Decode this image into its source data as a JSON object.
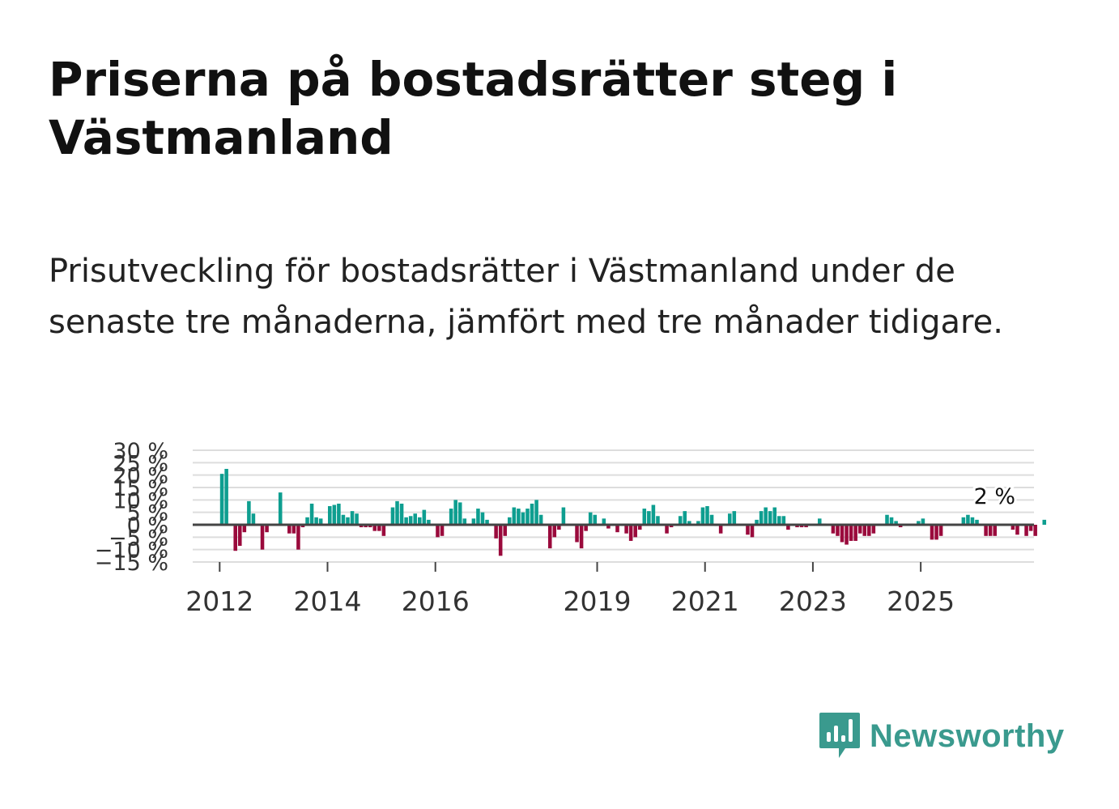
{
  "title": "Priserna på bostadsrätter steg i Västmanland",
  "subtitle": "Prisutveckling för bostadsrätter i Västmanland under de senaste tre månaderna, jämfört med tre månader tidigare.",
  "brand": {
    "name": "Newsworthy",
    "color": "#3a9a8e"
  },
  "colors": {
    "positive": "#0e9e90",
    "negative": "#9a0a3c",
    "zero_line": "#444444",
    "grid": "#dddddd"
  },
  "chart_data": {
    "type": "bar",
    "title": "",
    "xlabel": "",
    "ylabel": "",
    "ylim": [
      -15,
      30
    ],
    "y_ticks": [
      30,
      25,
      20,
      15,
      10,
      5,
      0,
      -5,
      -10,
      -15
    ],
    "y_tick_labels": [
      "30 %",
      "25 %",
      "20 %",
      "15 %",
      "10 %",
      "5 %",
      "0 %",
      "−5 %",
      "−10 %",
      "−15 %"
    ],
    "x_start": 2011.5,
    "x_end": 2027.1,
    "x_ticks": [
      2012,
      2014,
      2016,
      2019,
      2021,
      2023,
      2025
    ],
    "x_tick_labels": [
      "2012",
      "2014",
      "2016",
      "2019",
      "2021",
      "2023",
      "2025"
    ],
    "series_start": "2012-01",
    "last_value_label": "2 %",
    "values": [
      20.5,
      22.5,
      0,
      -10.5,
      -8.5,
      -3,
      9.5,
      4.5,
      0,
      -10,
      -3,
      0,
      0,
      13,
      0,
      -3.5,
      -3.5,
      -10,
      -1,
      3,
      8.5,
      3,
      2.5,
      0,
      7.5,
      8,
      8.5,
      4,
      3,
      5.5,
      4.5,
      -1,
      -1,
      -1,
      -2.5,
      -2.5,
      -4.5,
      0,
      7,
      9.5,
      8.5,
      3,
      3.5,
      4.5,
      3,
      6,
      2,
      0,
      -5,
      -4.5,
      0,
      6.5,
      10,
      9,
      2.5,
      0,
      2.5,
      6.5,
      5,
      2,
      0,
      -5.5,
      -12.5,
      -4.5,
      3,
      7,
      6.5,
      5,
      6.5,
      8.5,
      10,
      4,
      0,
      -9.5,
      -5,
      -2,
      7,
      0,
      0,
      -7,
      -9.5,
      -2.5,
      5,
      4,
      0,
      2.5,
      -1.5,
      0,
      -3,
      0,
      -3.5,
      -6.5,
      -5,
      -2,
      6.5,
      5.5,
      8,
      3.5,
      0,
      -3.5,
      -1,
      0,
      3.5,
      5.5,
      1.5,
      0,
      1.5,
      7,
      7.5,
      4,
      -0.5,
      -3.5,
      0,
      4.5,
      5.5,
      0,
      0,
      -4,
      -5,
      2,
      5.5,
      7,
      5.5,
      7,
      3.5,
      3.5,
      -2,
      0,
      -1,
      -1,
      -1,
      0,
      0,
      2.5,
      0.5,
      0,
      -3.5,
      -4.5,
      -7,
      -8,
      -6.5,
      -6.5,
      -3.5,
      -4.5,
      -4.5,
      -3.5,
      0,
      0,
      4,
      3,
      1.5,
      -1,
      0,
      0,
      0,
      1.5,
      2.5,
      0,
      -6,
      -6,
      -4.5,
      0,
      0,
      0,
      0,
      3,
      4,
      3,
      2,
      0,
      -4.5,
      -4.5,
      -4.5,
      0,
      0,
      0,
      -2,
      -4,
      0,
      -4.5,
      -2.5,
      -4.5,
      0,
      2
    ]
  }
}
